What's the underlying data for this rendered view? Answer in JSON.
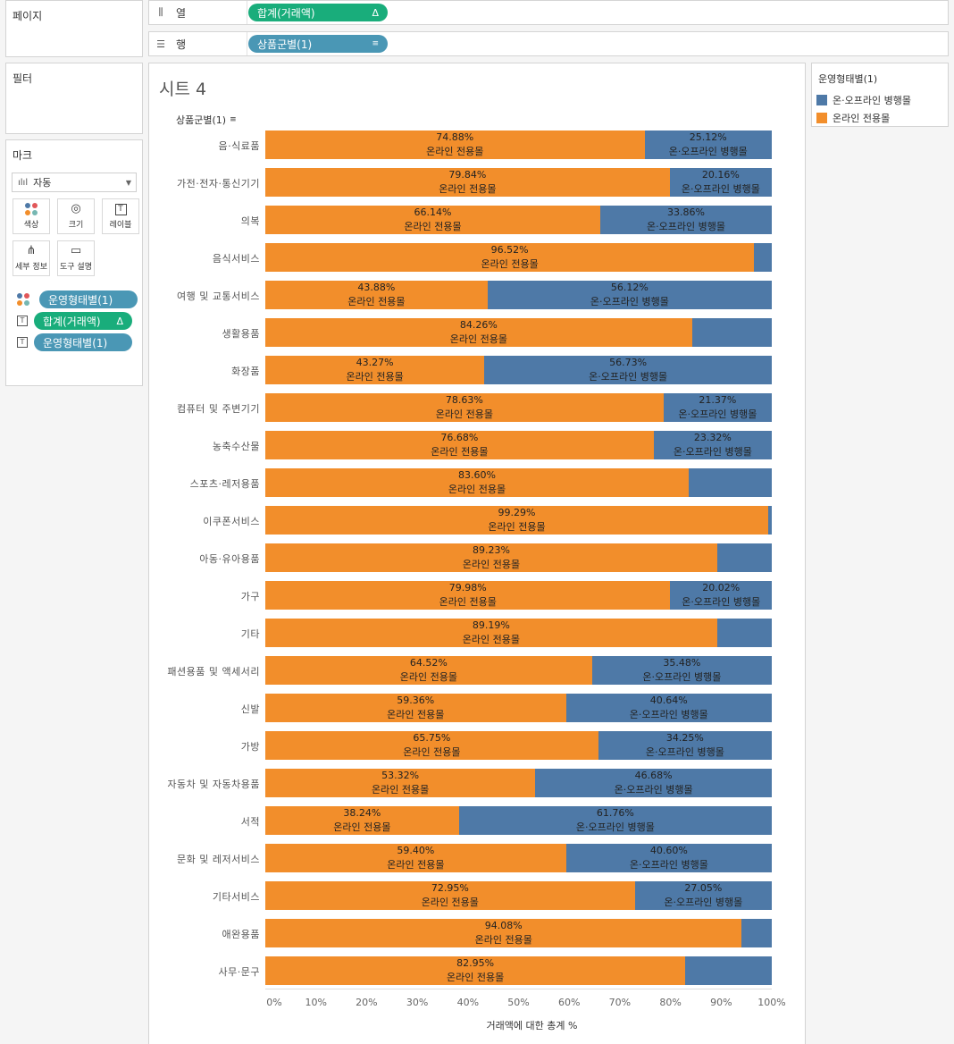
{
  "shelves": {
    "pages_label": "페이지",
    "columns": {
      "label": "열",
      "icon": "columns-icon",
      "pill": "합계(거래액)",
      "pill_mark": "Δ"
    },
    "rows": {
      "label": "행",
      "icon": "rows-icon",
      "pill": "상품군별(1)",
      "pill_mark": "sort-icon"
    }
  },
  "filters_label": "필터",
  "marks": {
    "title": "마크",
    "type": "자동",
    "buttons": [
      {
        "label": "색상",
        "icon": "color-icon"
      },
      {
        "label": "크기",
        "icon": "size-icon"
      },
      {
        "label": "레이블",
        "icon": "label-icon"
      },
      {
        "label": "세부 정보",
        "icon": "detail-icon"
      },
      {
        "label": "도구 설명",
        "icon": "tooltip-icon"
      }
    ],
    "fields": [
      {
        "icon": "color-dots-icon",
        "pill": "운영형태별(1)",
        "color": "blue"
      },
      {
        "icon": "text-icon",
        "pill": "합계(거래액)",
        "mark": "Δ",
        "color": "green"
      },
      {
        "icon": "text-icon",
        "pill": "운영형태별(1)",
        "color": "blue"
      }
    ]
  },
  "legend": {
    "title": "운영형태별(1)",
    "items": [
      {
        "label": "온·오프라인 병행몰",
        "color": "#4e79a7"
      },
      {
        "label": "온라인 전용몰",
        "color": "#f28e2b"
      }
    ]
  },
  "sheet_title": "시트 4",
  "row_header": "상품군별(1)",
  "chart_data": {
    "type": "bar",
    "orientation": "horizontal",
    "stacked": "100%",
    "xlabel": "거래액에 대한 총계 %",
    "xlim": [
      0,
      100
    ],
    "x_ticks": [
      "0%",
      "10%",
      "20%",
      "30%",
      "40%",
      "50%",
      "60%",
      "70%",
      "80%",
      "90%",
      "100%"
    ],
    "categories": [
      "음·식료품",
      "가전·전자·통신기기",
      "의복",
      "음식서비스",
      "여행 및 교통서비스",
      "생활용품",
      "화장품",
      "컴퓨터 및 주변기기",
      "농축수산물",
      "스포츠·레저용품",
      "이쿠폰서비스",
      "아동·유아용품",
      "가구",
      "기타",
      "패션용품 및 액세서리",
      "신발",
      "가방",
      "자동차 및 자동차용품",
      "서적",
      "문화 및 레저서비스",
      "기타서비스",
      "애완용품",
      "사무·문구"
    ],
    "series": [
      {
        "name": "온라인 전용몰",
        "color": "#f28e2b",
        "values": [
          74.88,
          79.84,
          66.14,
          96.52,
          43.88,
          84.26,
          43.27,
          78.63,
          76.68,
          83.6,
          99.29,
          89.23,
          79.98,
          89.19,
          64.52,
          59.36,
          65.75,
          53.32,
          38.24,
          59.4,
          72.95,
          94.08,
          82.95
        ],
        "labels": [
          "74.88%",
          "79.84%",
          "66.14%",
          "96.52%",
          "43.88%",
          "84.26%",
          "43.27%",
          "78.63%",
          "76.68%",
          "83.60%",
          "99.29%",
          "89.23%",
          "79.98%",
          "89.19%",
          "64.52%",
          "59.36%",
          "65.75%",
          "53.32%",
          "38.24%",
          "59.40%",
          "72.95%",
          "94.08%",
          "82.95%"
        ]
      },
      {
        "name": "온·오프라인 병행몰",
        "color": "#4e79a7",
        "values": [
          25.12,
          20.16,
          33.86,
          3.48,
          56.12,
          15.74,
          56.73,
          21.37,
          23.32,
          16.4,
          0.71,
          10.77,
          20.02,
          10.81,
          35.48,
          40.64,
          34.25,
          46.68,
          61.76,
          40.6,
          27.05,
          5.92,
          17.05
        ],
        "labels": [
          "25.12%",
          "20.16%",
          "33.86%",
          "",
          "56.12%",
          "",
          "56.73%",
          "21.37%",
          "23.32%",
          "",
          "",
          "",
          "20.02%",
          "",
          "35.48%",
          "40.64%",
          "34.25%",
          "46.68%",
          "61.76%",
          "40.60%",
          "27.05%",
          "",
          ""
        ]
      }
    ]
  }
}
